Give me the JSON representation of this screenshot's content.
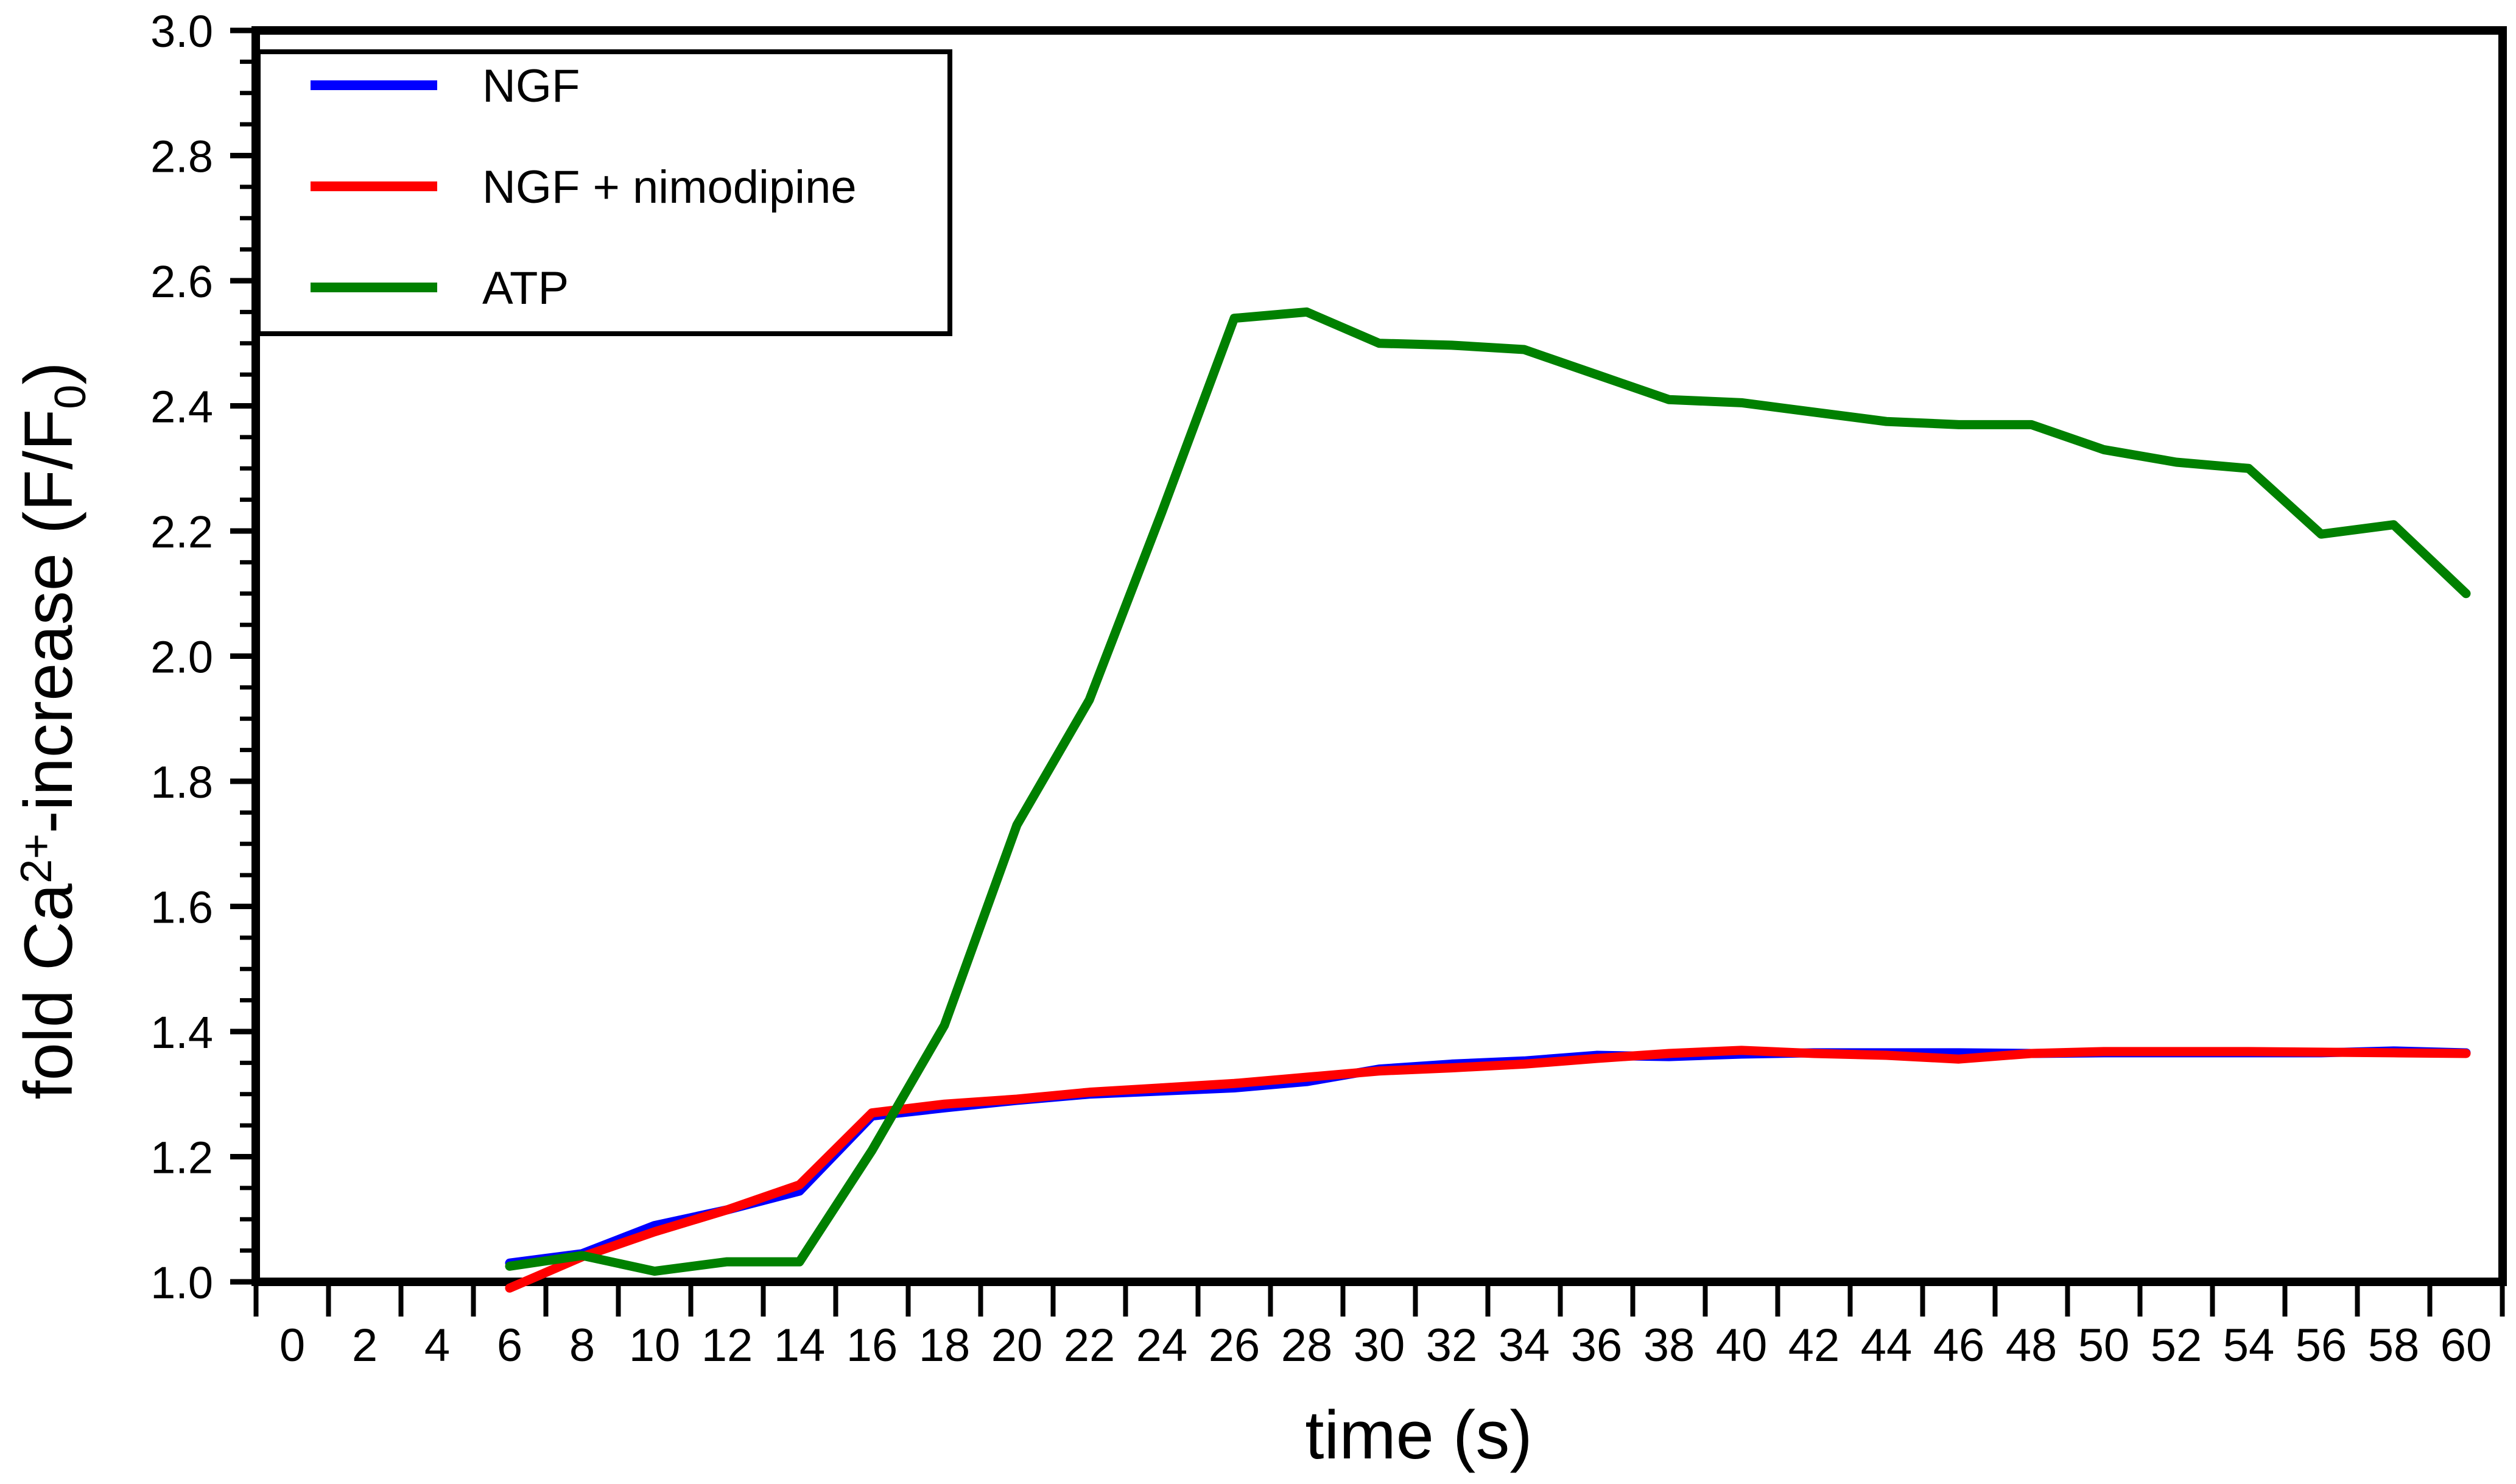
{
  "chart_data": {
    "type": "line",
    "title": "",
    "xlabel": "time (s)",
    "ylabel": "fold Ca2+-increase (F/F0)",
    "ylabel_parts": {
      "pre": "fold Ca",
      "sup": "2+",
      "mid": "-increase (F/F",
      "sub": "0",
      "post": ")"
    },
    "background": "#ffffff",
    "axis_color": "#000000",
    "grid": false,
    "legend_position": "top-left",
    "xlim": [
      -1,
      61
    ],
    "ylim": [
      1.0,
      3.0
    ],
    "x_tick_step": 2,
    "x_tick_labels": [
      0,
      2,
      4,
      6,
      8,
      10,
      12,
      14,
      16,
      18,
      20,
      22,
      24,
      26,
      28,
      30,
      32,
      34,
      36,
      38,
      40,
      42,
      44,
      46,
      48,
      50,
      52,
      54,
      56,
      58,
      60
    ],
    "y_tick_labels": [
      "1.0",
      "1.2",
      "1.4",
      "1.6",
      "1.8",
      "2.0",
      "2.2",
      "2.4",
      "2.6",
      "2.8",
      "3.0"
    ],
    "y_ticks": [
      1.0,
      1.2,
      1.4,
      1.6,
      1.8,
      2.0,
      2.2,
      2.4,
      2.6,
      2.8,
      3.0
    ],
    "y_minor_step": 0.05,
    "x": [
      6,
      8,
      10,
      12,
      14,
      16,
      18,
      20,
      22,
      24,
      26,
      28,
      30,
      32,
      34,
      36,
      38,
      40,
      42,
      44,
      46,
      48,
      50,
      52,
      54,
      56,
      58,
      60
    ],
    "series": [
      {
        "name": "NGF",
        "color": "#0000ff",
        "values": [
          1.03,
          1.045,
          1.09,
          1.115,
          1.145,
          1.265,
          1.278,
          1.29,
          1.3,
          1.305,
          1.31,
          1.32,
          1.34,
          1.348,
          1.353,
          1.362,
          1.36,
          1.364,
          1.366,
          1.366,
          1.366,
          1.365,
          1.366,
          1.366,
          1.366,
          1.366,
          1.369,
          1.366
        ]
      },
      {
        "name": "NGF + nimodipine",
        "color": "#ff0000",
        "values": [
          0.99,
          1.04,
          1.08,
          1.115,
          1.155,
          1.27,
          1.284,
          1.292,
          1.303,
          1.31,
          1.317,
          1.327,
          1.337,
          1.342,
          1.348,
          1.357,
          1.365,
          1.37,
          1.365,
          1.362,
          1.356,
          1.365,
          1.368,
          1.368,
          1.368,
          1.367,
          1.366,
          1.365
        ]
      },
      {
        "name": "ATP",
        "color": "#008000",
        "values": [
          1.025,
          1.042,
          1.017,
          1.032,
          1.032,
          1.21,
          1.41,
          1.73,
          1.93,
          2.23,
          2.54,
          2.55,
          2.5,
          2.497,
          2.49,
          2.45,
          2.41,
          2.405,
          2.39,
          2.375,
          2.37,
          2.37,
          2.33,
          2.31,
          2.3,
          2.195,
          2.21,
          2.1
        ]
      }
    ]
  }
}
